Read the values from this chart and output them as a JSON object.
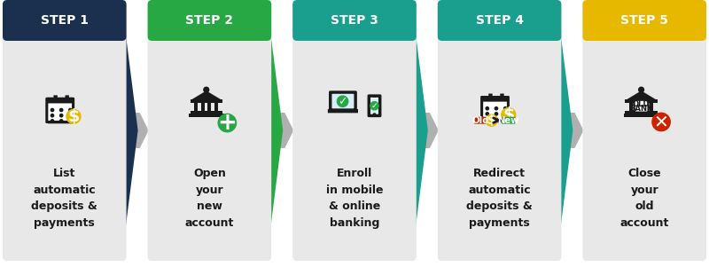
{
  "steps": [
    {
      "number": "STEP 1",
      "header_color": "#1b2f4e",
      "text": "List\nautomatic\ndeposits &\npayments",
      "icon": "calendar_dollar"
    },
    {
      "number": "STEP 2",
      "header_color": "#28a745",
      "text": "Open\nyour\nnew\naccount",
      "icon": "bank_plus"
    },
    {
      "number": "STEP 3",
      "header_color": "#1a9e8e",
      "text": "Enroll\nin mobile\n& online\nbanking",
      "icon": "laptop_phone"
    },
    {
      "number": "STEP 4",
      "header_color": "#1a9e8e",
      "text": "Redirect\nautomatic\ndeposits &\npayments",
      "icon": "calendar_redirect"
    },
    {
      "number": "STEP 5",
      "header_color": "#e6b800",
      "text": "Close\nyour\nold\naccount",
      "icon": "bank_x"
    }
  ],
  "card_color": "#e8e8e8",
  "arrow_color": "#b0b0b0",
  "text_color": "#1a1a1a",
  "header_text_color": "#ffffff",
  "background_color": "#ffffff",
  "icon_color": "#1a1a1a",
  "green_color": "#28a745",
  "gold_color": "#e6b800",
  "red_color": "#cc2200",
  "figsize": [
    8.0,
    3.1
  ],
  "dpi": 100
}
